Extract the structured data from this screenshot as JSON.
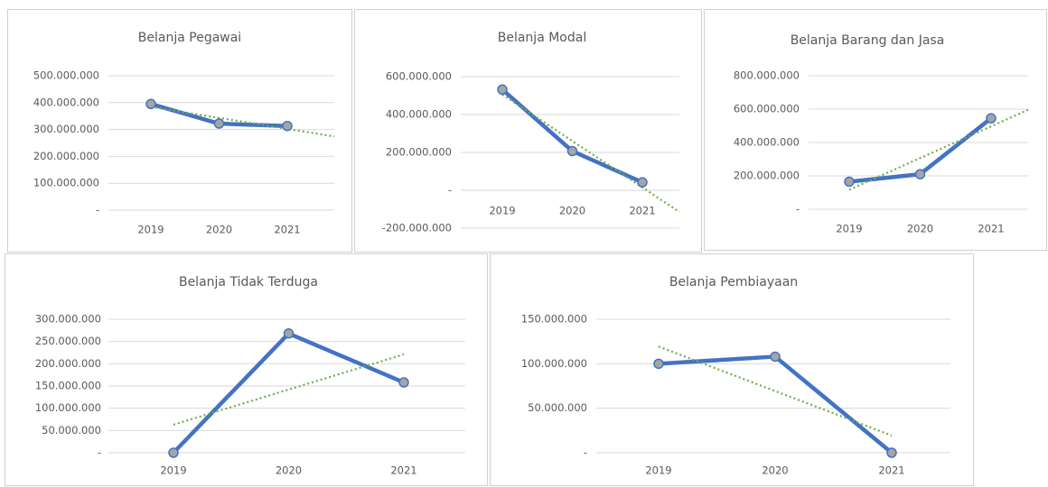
{
  "chart_data": [
    {
      "type": "line",
      "title": "Belanja Pegawai",
      "categories": [
        "2019",
        "2020",
        "2021"
      ],
      "series": [
        {
          "color": "#4472c4",
          "values": [
            395000000,
            322000000,
            313000000
          ]
        }
      ],
      "marker_color": "#a5a5a5",
      "trendline": "linear",
      "trendline_color": "#70ad47",
      "grid": true,
      "ylim": [
        0,
        500000000
      ],
      "yticks": [
        {
          "value": 0,
          "label": "-"
        },
        {
          "value": 100000000,
          "label": "100.000.000"
        },
        {
          "value": 200000000,
          "label": "200.000.000"
        },
        {
          "value": 300000000,
          "label": "300.000.000"
        },
        {
          "value": 400000000,
          "label": "400.000.000"
        },
        {
          "value": 500000000,
          "label": "500.000.000"
        }
      ]
    },
    {
      "type": "line",
      "title": "Belanja Modal",
      "categories": [
        "2019",
        "2020",
        "2021"
      ],
      "series": [
        {
          "color": "#4472c4",
          "values": [
            532000000,
            207000000,
            42000000
          ]
        }
      ],
      "marker_color": "#a5a5a5",
      "trendline": "linear",
      "trendline_color": "#70ad47",
      "grid": true,
      "ylim": [
        -200000000,
        600000000
      ],
      "yticks": [
        {
          "value": -200000000,
          "label": "-200.000.000"
        },
        {
          "value": 0,
          "label": "-"
        },
        {
          "value": 200000000,
          "label": "200.000.000"
        },
        {
          "value": 400000000,
          "label": "400.000.000"
        },
        {
          "value": 600000000,
          "label": "600.000.000"
        }
      ]
    },
    {
      "type": "line",
      "title": "Belanja Barang dan Jasa",
      "categories": [
        "2019",
        "2020",
        "2021"
      ],
      "series": [
        {
          "color": "#4472c4",
          "values": [
            165000000,
            210000000,
            545000000
          ]
        }
      ],
      "marker_color": "#a5a5a5",
      "trendline": "linear",
      "trendline_color": "#70ad47",
      "grid": true,
      "ylim": [
        0,
        800000000
      ],
      "yticks": [
        {
          "value": 0,
          "label": "-"
        },
        {
          "value": 200000000,
          "label": "200.000.000"
        },
        {
          "value": 400000000,
          "label": "400.000.000"
        },
        {
          "value": 600000000,
          "label": "600.000.000"
        },
        {
          "value": 800000000,
          "label": "800.000.000"
        }
      ]
    },
    {
      "type": "line",
      "title": "Belanja Tidak Terduga",
      "categories": [
        "2019",
        "2020",
        "2021"
      ],
      "series": [
        {
          "color": "#4472c4",
          "values": [
            0,
            268000000,
            158000000
          ]
        }
      ],
      "marker_color": "#a5a5a5",
      "trendline": "linear",
      "trendline_color": "#70ad47",
      "grid": true,
      "ylim": [
        0,
        300000000
      ],
      "yticks": [
        {
          "value": 0,
          "label": "-"
        },
        {
          "value": 50000000,
          "label": "50.000.000"
        },
        {
          "value": 100000000,
          "label": "100.000.000"
        },
        {
          "value": 150000000,
          "label": "150.000.000"
        },
        {
          "value": 200000000,
          "label": "200.000.000"
        },
        {
          "value": 250000000,
          "label": "250.000.000"
        },
        {
          "value": 300000000,
          "label": "300.000.000"
        }
      ]
    },
    {
      "type": "line",
      "title": "Belanja Pembiayaan",
      "categories": [
        "2019",
        "2020",
        "2021"
      ],
      "series": [
        {
          "color": "#4472c4",
          "values": [
            100000000,
            108000000,
            0
          ]
        }
      ],
      "marker_color": "#a5a5a5",
      "trendline": "linear",
      "trendline_color": "#70ad47",
      "grid": true,
      "ylim": [
        0,
        150000000
      ],
      "yticks": [
        {
          "value": 0,
          "label": "-"
        },
        {
          "value": 50000000,
          "label": "50.000.000"
        },
        {
          "value": 100000000,
          "label": "100.000.000"
        },
        {
          "value": 150000000,
          "label": "150.000.000"
        }
      ]
    }
  ]
}
